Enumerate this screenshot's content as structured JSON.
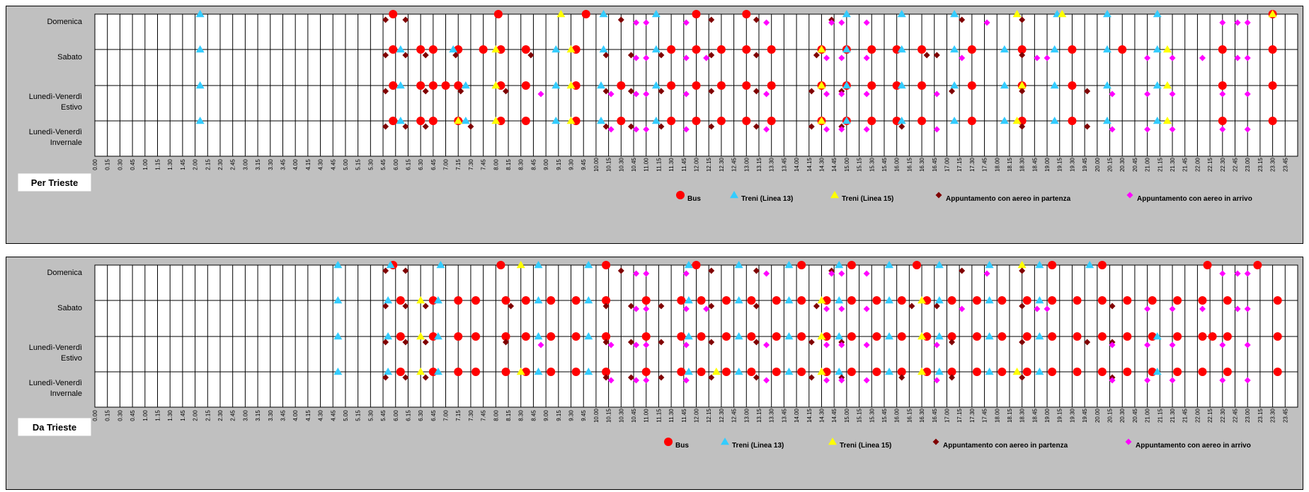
{
  "colors": {
    "background": "#c0c0c0",
    "bus": "#ff0000",
    "treni13": "#33ccff",
    "treni15": "#ffff00",
    "partenza": "#800000",
    "arrivo": "#ff00ff"
  },
  "chart_data": [
    {
      "type": "scatter",
      "title": "Per Trieste",
      "categories": [
        "Domenica",
        "Sabato",
        "Lunedì-Venerdì Estivo",
        "Lunedì-Venerdì Invernale"
      ],
      "category_lines": [
        [
          "Domenica"
        ],
        [
          "Sabato"
        ],
        [
          "Lunedì-Venerdì",
          "Estivo"
        ],
        [
          "Lunedì-Venerdì",
          "Invernale"
        ]
      ],
      "x_ticks": [
        "0.00",
        "0.15",
        "0.30",
        "0.45",
        "1.00",
        "1.15",
        "1.30",
        "1.45",
        "2.00",
        "2.15",
        "2.30",
        "2.45",
        "3.00",
        "3.15",
        "3.30",
        "3.45",
        "4.00",
        "4.15",
        "4.30",
        "4.45",
        "5.00",
        "5.15",
        "5.30",
        "5.45",
        "6.00",
        "6.15",
        "6.30",
        "6.45",
        "7.00",
        "7.15",
        "7.30",
        "7.45",
        "8.00",
        "8.15",
        "8.30",
        "8.45",
        "9.00",
        "9.15",
        "9.30",
        "9.45",
        "10.00",
        "10.15",
        "10.30",
        "10.45",
        "11.00",
        "11.15",
        "11.30",
        "11.45",
        "12.00",
        "12.15",
        "12.30",
        "12.45",
        "13.00",
        "13.15",
        "13.30",
        "13.45",
        "14.00",
        "14.15",
        "14.30",
        "14.45",
        "15.00",
        "15.15",
        "15.30",
        "15.45",
        "16.00",
        "16.15",
        "16.30",
        "16.45",
        "17.00",
        "17.15",
        "17.30",
        "17.45",
        "18.00",
        "18.15",
        "18.30",
        "18.45",
        "19.00",
        "19.15",
        "19.30",
        "19.45",
        "20.00",
        "20.15",
        "20.30",
        "20.45",
        "21.00",
        "21.15",
        "21.30",
        "21.45",
        "22.00",
        "22.15",
        "22.30",
        "22.45",
        "23.00",
        "23.15",
        "23.30",
        "23.45"
      ],
      "xlim": [
        0,
        24
      ],
      "grid": true,
      "legend": "bottom",
      "series": [
        {
          "name": "Bus",
          "marker": "circle",
          "color": "#ff0000",
          "points": {
            "Domenica": [
              5.95,
              8.05,
              9.8,
              12.0,
              13.0,
              23.5
            ],
            "Sabato": [
              5.95,
              6.5,
              6.75,
              7.25,
              7.75,
              8.1,
              8.6,
              9.6,
              11.5,
              12.0,
              12.5,
              13.0,
              13.5,
              14.5,
              15.0,
              15.5,
              16.0,
              16.5,
              17.5,
              18.5,
              19.5,
              20.5,
              22.5,
              23.5
            ],
            "Lunedì-Venerdì Estivo": [
              5.95,
              6.5,
              6.75,
              7.0,
              7.25,
              8.1,
              8.6,
              9.6,
              10.5,
              11.5,
              12.0,
              12.5,
              13.0,
              13.5,
              14.5,
              15.0,
              15.5,
              16.0,
              16.5,
              17.5,
              18.5,
              19.5,
              22.5,
              23.5
            ],
            "Lunedì-Venerdì Invernale": [
              5.95,
              6.5,
              6.75,
              7.25,
              8.1,
              8.6,
              9.6,
              10.5,
              11.5,
              12.0,
              12.5,
              13.0,
              13.5,
              14.5,
              15.0,
              15.5,
              16.0,
              16.5,
              17.5,
              18.5,
              19.5,
              22.5,
              23.5
            ]
          }
        },
        {
          "name": "Treni (Linea 13)",
          "marker": "triangle",
          "color": "#33ccff",
          "points": {
            "Domenica": [
              2.1,
              10.15,
              11.2,
              15.0,
              16.1,
              17.15,
              19.2,
              20.2,
              21.2
            ],
            "Sabato": [
              2.1,
              6.1,
              7.15,
              9.2,
              10.15,
              11.2,
              15.0,
              16.1,
              17.15,
              18.15,
              19.15,
              20.2,
              21.2
            ],
            "Lunedì-Venerdì Estivo": [
              2.1,
              6.1,
              7.4,
              9.2,
              10.1,
              11.2,
              15.0,
              16.1,
              17.15,
              18.15,
              19.15,
              20.2,
              21.2
            ],
            "Lunedì-Venerdì Invernale": [
              2.1,
              6.1,
              7.4,
              9.2,
              10.1,
              11.2,
              15.0,
              16.1,
              17.15,
              18.15,
              19.15,
              20.2,
              21.2
            ]
          }
        },
        {
          "name": "Treni (Linea 15)",
          "marker": "triangle",
          "color": "#ffff00",
          "points": {
            "Domenica": [
              9.3,
              18.4,
              19.3,
              23.5
            ],
            "Sabato": [
              8.0,
              9.5,
              14.5,
              21.4
            ],
            "Lunedì-Venerdì Estivo": [
              8.0,
              9.5,
              14.5,
              18.5,
              21.4
            ],
            "Lunedì-Venerdì Invernale": [
              7.25,
              8.0,
              9.5,
              14.5,
              18.4,
              21.4
            ]
          }
        },
        {
          "name": "Appuntamento con aereo in partenza",
          "marker": "diamond",
          "color": "#800000",
          "points": {
            "Domenica": [
              5.8,
              6.2,
              10.5,
              12.3,
              13.2,
              14.7,
              17.3,
              18.5
            ],
            "Sabato": [
              5.8,
              6.2,
              6.6,
              7.2,
              8.7,
              10.2,
              10.7,
              11.3,
              12.3,
              13.2,
              14.4,
              16.6,
              16.8,
              18.5
            ],
            "Lunedì-Venerdì Estivo": [
              5.8,
              6.6,
              7.3,
              8.2,
              10.2,
              10.7,
              11.3,
              12.3,
              13.2,
              14.3,
              14.9,
              17.1,
              18.5,
              19.8
            ],
            "Lunedì-Venerdì Invernale": [
              5.8,
              6.2,
              6.6,
              7.5,
              10.2,
              10.7,
              11.3,
              12.3,
              13.2,
              14.3,
              14.9,
              16.1,
              18.5,
              19.8
            ]
          }
        },
        {
          "name": "Appuntamento con aereo in arrivo",
          "marker": "diamond",
          "color": "#ff00ff",
          "points": {
            "Domenica": [
              10.8,
              11.0,
              11.8,
              13.4,
              14.7,
              14.9,
              15.4,
              17.8,
              22.5,
              22.8,
              23.0
            ],
            "Sabato": [
              10.8,
              11.0,
              11.8,
              12.2,
              14.6,
              14.9,
              15.4,
              17.3,
              18.8,
              19.0,
              21.0,
              21.5,
              22.1,
              22.8,
              23.0
            ],
            "Lunedì-Venerdì Estivo": [
              8.9,
              10.3,
              10.8,
              11.0,
              11.8,
              13.4,
              14.6,
              14.9,
              15.4,
              16.8,
              20.3,
              21.0,
              21.5,
              22.5,
              23.0
            ],
            "Lunedì-Venerdì Invernale": [
              10.3,
              10.8,
              11.0,
              11.8,
              13.4,
              14.6,
              14.9,
              15.4,
              16.8,
              20.3,
              21.0,
              21.5,
              22.5,
              23.0
            ]
          }
        }
      ]
    },
    {
      "type": "scatter",
      "title": "Da Trieste",
      "categories": [
        "Domenica",
        "Sabato",
        "Lunedì-Venerdì Estivo",
        "Lunedì-Venerdì Invernale"
      ],
      "category_lines": [
        [
          "Domenica"
        ],
        [
          "Sabato"
        ],
        [
          "Lunedì-Venerdì",
          "Estivo"
        ],
        [
          "Lunedì-Venerdì",
          "Invernale"
        ]
      ],
      "x_ticks": [
        "0.00",
        "0.15",
        "0.30",
        "0.45",
        "1.00",
        "1.15",
        "1.30",
        "1.45",
        "2.00",
        "2.15",
        "2.30",
        "2.45",
        "3.00",
        "3.15",
        "3.30",
        "3.45",
        "4.00",
        "4.15",
        "4.30",
        "4.45",
        "5.00",
        "5.15",
        "5.30",
        "5.45",
        "6.00",
        "6.15",
        "6.30",
        "6.45",
        "7.00",
        "7.15",
        "7.30",
        "7.45",
        "8.00",
        "8.15",
        "8.30",
        "8.45",
        "9.00",
        "9.15",
        "9.30",
        "9.45",
        "10.00",
        "10.15",
        "10.30",
        "10.45",
        "11.00",
        "11.15",
        "11.30",
        "11.45",
        "12.00",
        "12.15",
        "12.30",
        "12.45",
        "13.00",
        "13.15",
        "13.30",
        "13.45",
        "14.00",
        "14.15",
        "14.30",
        "14.45",
        "15.00",
        "15.15",
        "15.30",
        "15.45",
        "16.00",
        "16.15",
        "16.30",
        "16.45",
        "17.00",
        "17.15",
        "17.30",
        "17.45",
        "18.00",
        "18.15",
        "18.30",
        "18.45",
        "19.00",
        "19.15",
        "19.30",
        "19.45",
        "20.00",
        "20.15",
        "20.30",
        "20.45",
        "21.00",
        "21.15",
        "21.30",
        "21.45",
        "22.00",
        "22.15",
        "22.30",
        "22.45",
        "23.00",
        "23.15",
        "23.30",
        "23.45"
      ],
      "xlim": [
        0,
        24
      ],
      "grid": true,
      "legend": "bottom",
      "series": [
        {
          "name": "Bus",
          "marker": "circle",
          "color": "#ff0000",
          "points": {
            "Domenica": [
              5.95,
              8.1,
              10.2,
              12.0,
              14.1,
              15.1,
              16.4,
              19.1,
              20.1,
              22.2,
              23.2
            ],
            "Sabato": [
              6.1,
              6.75,
              7.25,
              7.6,
              8.2,
              8.6,
              9.1,
              9.6,
              10.2,
              11.0,
              11.7,
              12.1,
              12.6,
              13.1,
              13.6,
              14.1,
              14.6,
              15.1,
              15.6,
              16.1,
              16.6,
              17.1,
              17.6,
              18.1,
              18.6,
              19.1,
              19.6,
              20.1,
              20.6,
              21.1,
              21.6,
              22.1,
              22.6,
              23.6
            ],
            "Lunedì-Venerdì Estivo": [
              6.1,
              6.75,
              7.25,
              7.6,
              8.2,
              8.6,
              9.1,
              9.6,
              10.2,
              11.0,
              11.7,
              12.1,
              12.6,
              13.1,
              13.6,
              14.1,
              14.6,
              15.1,
              15.6,
              16.1,
              16.6,
              17.1,
              17.6,
              18.1,
              18.6,
              19.1,
              19.6,
              20.1,
              20.6,
              21.1,
              21.6,
              22.1,
              22.3,
              22.6,
              23.6
            ],
            "Lunedì-Venerdì Invernale": [
              6.1,
              6.75,
              7.25,
              7.6,
              8.2,
              8.6,
              9.1,
              9.6,
              10.2,
              11.0,
              11.7,
              12.1,
              12.6,
              13.1,
              13.6,
              14.1,
              14.6,
              15.1,
              15.6,
              16.1,
              16.6,
              17.1,
              17.6,
              18.1,
              18.6,
              19.1,
              19.6,
              20.1,
              20.6,
              21.1,
              21.6,
              22.1,
              22.6,
              23.6
            ]
          }
        },
        {
          "name": "Treni (Linea 13)",
          "marker": "triangle",
          "color": "#33ccff",
          "points": {
            "Domenica": [
              4.85,
              5.9,
              6.9,
              8.85,
              9.85,
              11.85,
              12.85,
              13.85,
              14.85,
              15.85,
              16.85,
              17.85,
              18.85,
              19.85
            ],
            "Sabato": [
              4.85,
              5.85,
              6.85,
              8.85,
              9.85,
              11.85,
              12.85,
              13.85,
              14.85,
              15.85,
              16.85,
              17.85,
              18.85
            ],
            "Lunedì-Venerdì Estivo": [
              4.85,
              5.85,
              6.85,
              8.85,
              9.85,
              11.85,
              12.85,
              13.85,
              14.85,
              15.85,
              16.85,
              17.85,
              18.85,
              21.2
            ],
            "Lunedì-Venerdì Invernale": [
              4.85,
              5.85,
              6.85,
              8.85,
              9.85,
              11.85,
              12.85,
              13.85,
              14.85,
              15.85,
              16.85,
              17.85,
              18.85,
              21.2
            ]
          }
        },
        {
          "name": "Treni (Linea 15)",
          "marker": "triangle",
          "color": "#ffff00",
          "points": {
            "Domenica": [
              8.5,
              18.5
            ],
            "Sabato": [
              6.5,
              14.5,
              16.5
            ],
            "Lunedì-Venerdì Estivo": [
              6.5,
              14.5,
              16.5
            ],
            "Lunedì-Venerdì Invernale": [
              6.5,
              8.5,
              12.4,
              14.5,
              16.5,
              18.4
            ]
          }
        },
        {
          "name": "Appuntamento con aereo in partenza",
          "marker": "diamond",
          "color": "#800000",
          "points": {
            "Domenica": [
              5.8,
              6.2,
              10.5,
              12.3,
              13.2,
              14.7,
              17.3,
              18.5
            ],
            "Sabato": [
              5.8,
              6.2,
              6.6,
              8.3,
              10.2,
              10.7,
              11.3,
              12.3,
              13.2,
              14.4,
              16.3,
              16.8,
              18.5,
              20.3
            ],
            "Lunedì-Venerdì Estivo": [
              5.8,
              6.2,
              6.6,
              8.2,
              10.2,
              10.7,
              11.3,
              12.3,
              13.2,
              14.3,
              14.9,
              17.1,
              18.5,
              19.8,
              20.3
            ],
            "Lunedì-Venerdì Invernale": [
              5.8,
              6.2,
              6.6,
              10.2,
              10.7,
              11.3,
              12.3,
              13.2,
              14.3,
              14.9,
              16.1,
              17.1,
              18.5,
              20.3
            ]
          }
        },
        {
          "name": "Appuntamento con aereo in arrivo",
          "marker": "diamond",
          "color": "#ff00ff",
          "points": {
            "Domenica": [
              10.8,
              11.0,
              11.8,
              13.4,
              14.7,
              14.9,
              15.4,
              17.8,
              22.5,
              22.8,
              23.0
            ],
            "Sabato": [
              10.8,
              11.0,
              11.8,
              12.2,
              14.6,
              14.9,
              15.4,
              17.3,
              18.8,
              19.0,
              21.0,
              21.5,
              22.1,
              22.8,
              23.0
            ],
            "Lunedì-Venerdì Estivo": [
              8.9,
              10.3,
              10.8,
              11.0,
              11.8,
              13.4,
              14.6,
              14.9,
              15.4,
              16.8,
              20.3,
              21.0,
              21.5,
              22.5,
              23.0
            ],
            "Lunedì-Venerdì Invernale": [
              10.3,
              10.8,
              11.0,
              11.8,
              13.4,
              14.6,
              14.9,
              15.4,
              16.8,
              20.3,
              21.0,
              21.5,
              22.5,
              23.0
            ]
          }
        }
      ]
    }
  ]
}
